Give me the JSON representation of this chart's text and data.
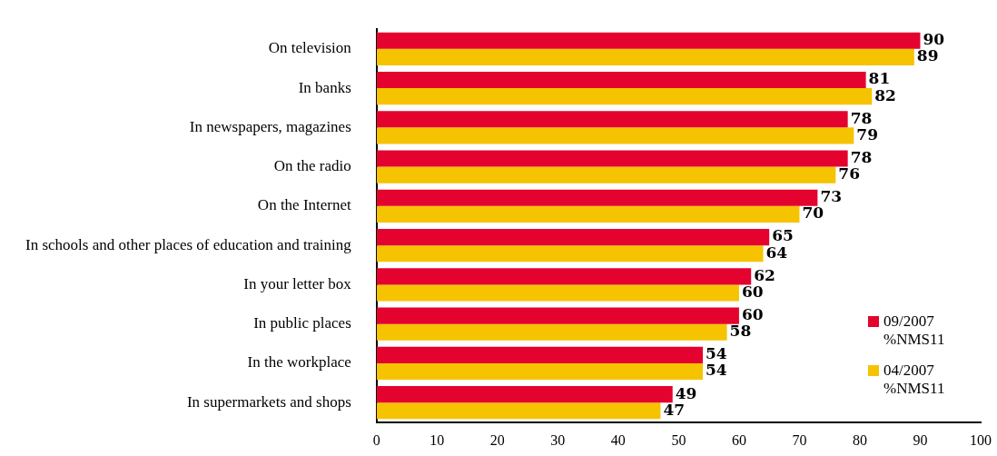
{
  "chart_data": {
    "type": "bar",
    "orientation": "horizontal",
    "categories": [
      "On television",
      "In banks",
      "In newspapers, magazines",
      "On the radio",
      "On the Internet",
      "In schools and other places of education and training",
      "In your letter box",
      "In public places",
      "In the workplace",
      "In supermarkets and shops"
    ],
    "series": [
      {
        "name": "09/2007 %NMS11",
        "color": "#e4032e",
        "values": [
          90,
          81,
          78,
          78,
          73,
          65,
          62,
          60,
          54,
          49
        ]
      },
      {
        "name": "04/2007 %NMS11",
        "color": "#f5c300",
        "values": [
          89,
          82,
          79,
          76,
          70,
          64,
          60,
          58,
          54,
          47
        ]
      }
    ],
    "xlim": [
      0,
      100
    ],
    "xticks": [
      0,
      10,
      20,
      30,
      40,
      50,
      60,
      70,
      80,
      90,
      100
    ],
    "grid": false,
    "legend": "bottom right",
    "data_labels": true
  }
}
